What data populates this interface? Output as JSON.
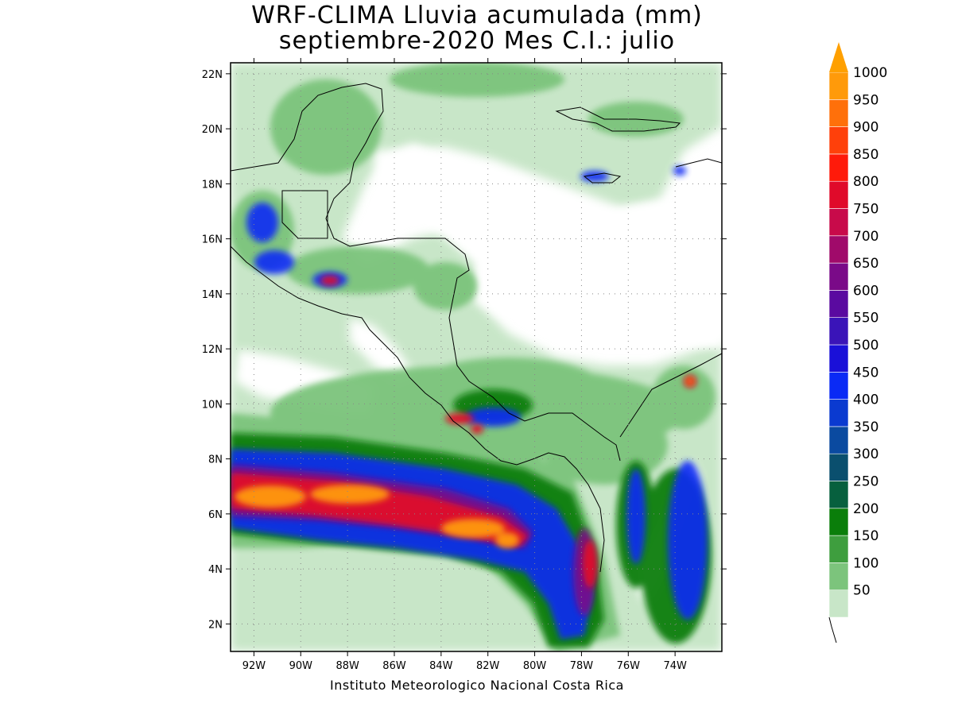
{
  "title": {
    "line1": "WRF-CLIMA Lluvia acumulada (mm)",
    "line2": "septiembre-2020 Mes C.I.: julio"
  },
  "credit": "Instituto Meteorologico Nacional Costa Rica",
  "map": {
    "lon_range": [
      -93.0,
      -72.0
    ],
    "lat_range": [
      1.0,
      22.4
    ],
    "lat_ticks": [
      {
        "value": 22,
        "label": "22N"
      },
      {
        "value": 20,
        "label": "20N"
      },
      {
        "value": 18,
        "label": "18N"
      },
      {
        "value": 16,
        "label": "16N"
      },
      {
        "value": 14,
        "label": "14N"
      },
      {
        "value": 12,
        "label": "12N"
      },
      {
        "value": 10,
        "label": "10N"
      },
      {
        "value": 8,
        "label": "8N"
      },
      {
        "value": 6,
        "label": "6N"
      },
      {
        "value": 4,
        "label": "4N"
      },
      {
        "value": 2,
        "label": "2N"
      }
    ],
    "lon_ticks": [
      {
        "value": -92,
        "label": "92W"
      },
      {
        "value": -90,
        "label": "90W"
      },
      {
        "value": -88,
        "label": "88W"
      },
      {
        "value": -86,
        "label": "86W"
      },
      {
        "value": -84,
        "label": "84W"
      },
      {
        "value": -82,
        "label": "82W"
      },
      {
        "value": -80,
        "label": "80W"
      },
      {
        "value": -78,
        "label": "78W"
      },
      {
        "value": -76,
        "label": "76W"
      },
      {
        "value": -74,
        "label": "74W"
      }
    ],
    "grid": "dotted"
  },
  "colorbar": {
    "arrow_color": "#ffa000",
    "levels": [
      {
        "label": "50",
        "color": "#c8e6c8"
      },
      {
        "label": "100",
        "color": "#7cc47c"
      },
      {
        "label": "150",
        "color": "#3e9e3e"
      },
      {
        "label": "200",
        "color": "#0a7e0a"
      },
      {
        "label": "250",
        "color": "#07603e"
      },
      {
        "label": "300",
        "color": "#0a4f6e"
      },
      {
        "label": "350",
        "color": "#0a4aa0"
      },
      {
        "label": "400",
        "color": "#0a3ad0"
      },
      {
        "label": "450",
        "color": "#0a2af5"
      },
      {
        "label": "500",
        "color": "#1a10d8"
      },
      {
        "label": "550",
        "color": "#3a14b8"
      },
      {
        "label": "600",
        "color": "#5a0aa0"
      },
      {
        "label": "650",
        "color": "#7a0a88"
      },
      {
        "label": "700",
        "color": "#a00a6a"
      },
      {
        "label": "750",
        "color": "#c80a4a"
      },
      {
        "label": "800",
        "color": "#e00a2a"
      },
      {
        "label": "850",
        "color": "#ff1a0a"
      },
      {
        "label": "900",
        "color": "#ff400a"
      },
      {
        "label": "950",
        "color": "#ff700a"
      },
      {
        "label": "1000",
        "color": "#ff9a0a"
      }
    ]
  }
}
